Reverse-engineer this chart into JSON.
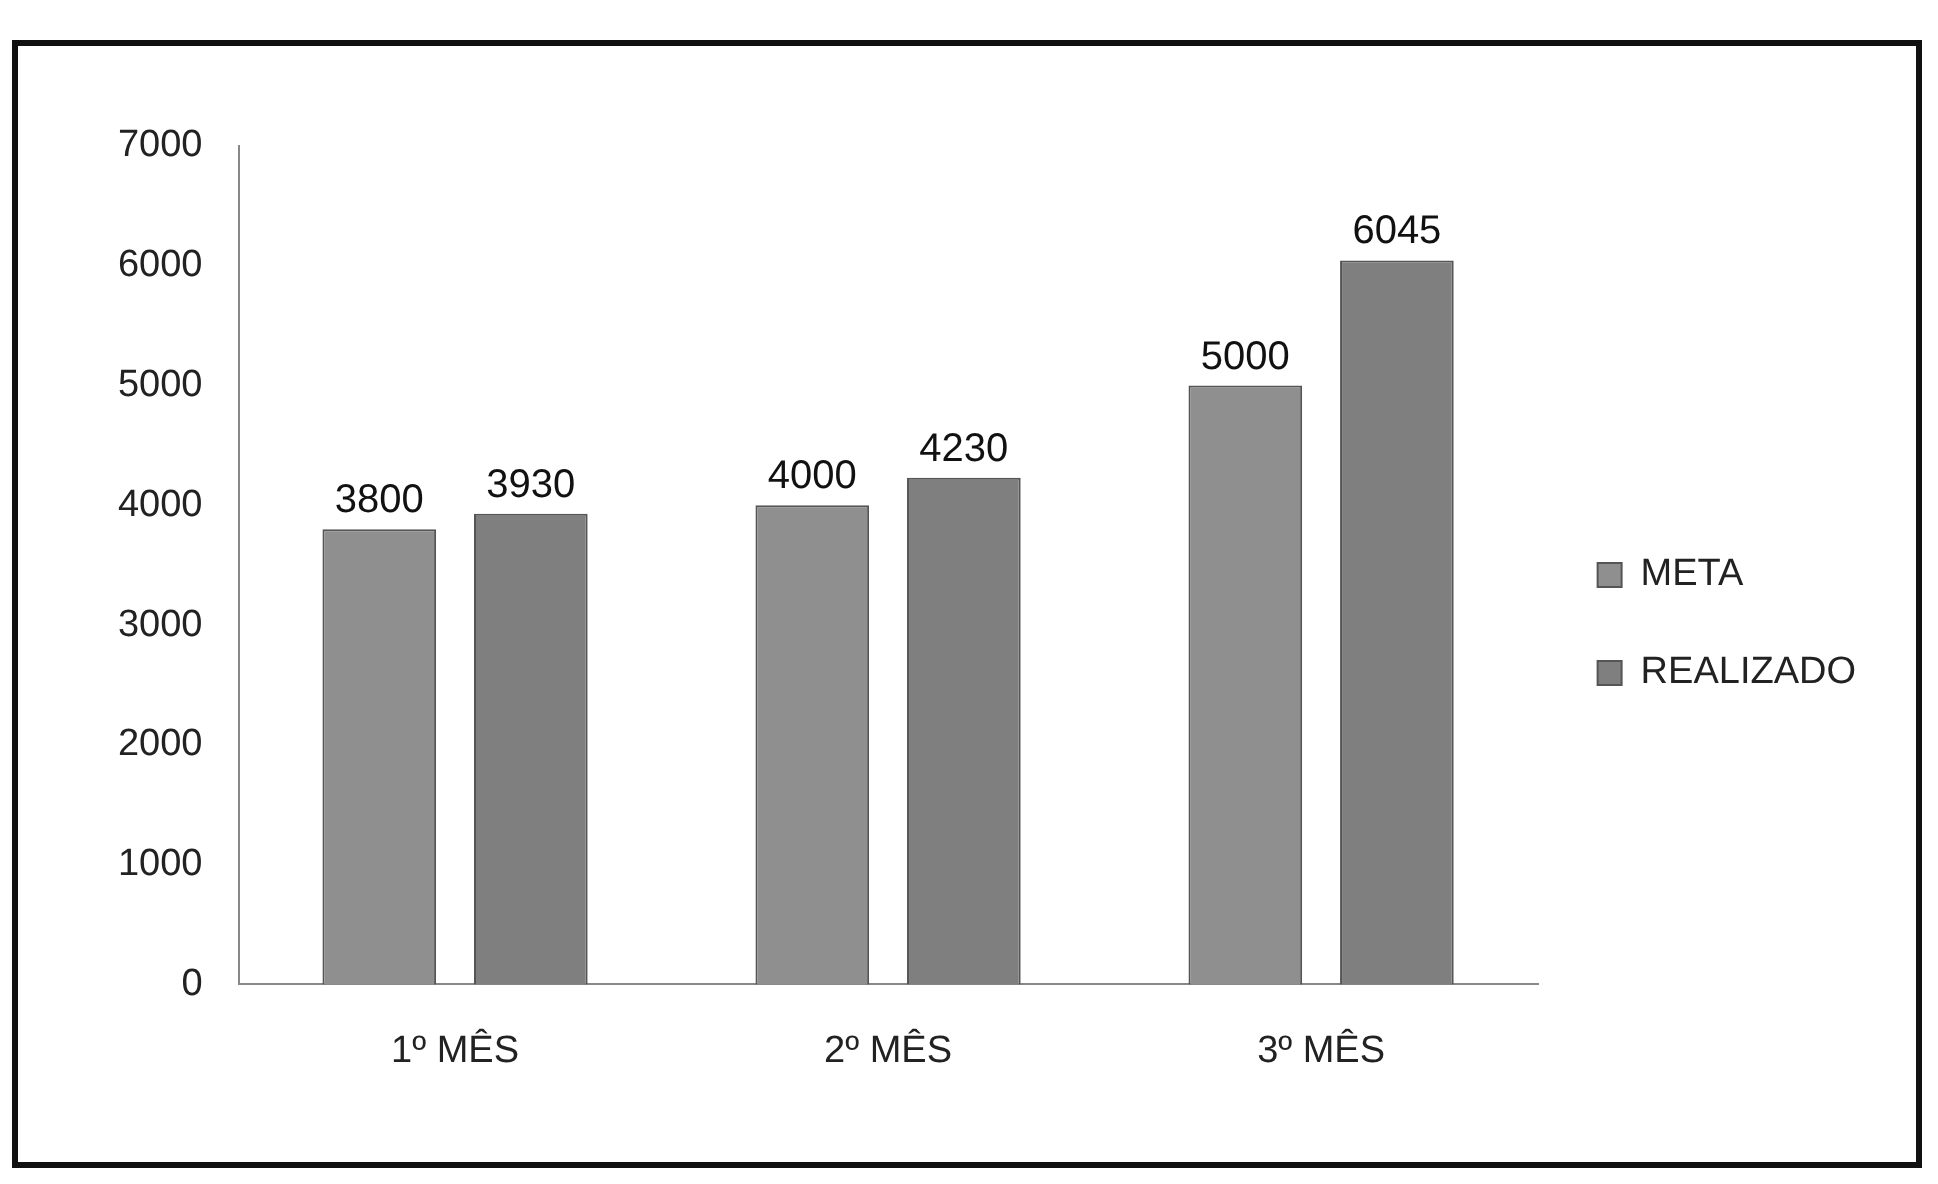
{
  "chart_data": {
    "type": "bar",
    "categories": [
      "1º MÊS",
      "2º MÊS",
      "3º MÊS"
    ],
    "series": [
      {
        "name": "META",
        "color": "#8f8f8f",
        "values": [
          3800,
          4000,
          5000
        ]
      },
      {
        "name": "REALIZADO",
        "color": "#7f7f7f",
        "values": [
          3930,
          4230,
          6045
        ]
      }
    ],
    "ylim": [
      0,
      7000
    ],
    "yticks": [
      0,
      1000,
      2000,
      3000,
      4000,
      5000,
      6000,
      7000
    ],
    "data_labels": true,
    "legend": "right",
    "grid": false
  }
}
